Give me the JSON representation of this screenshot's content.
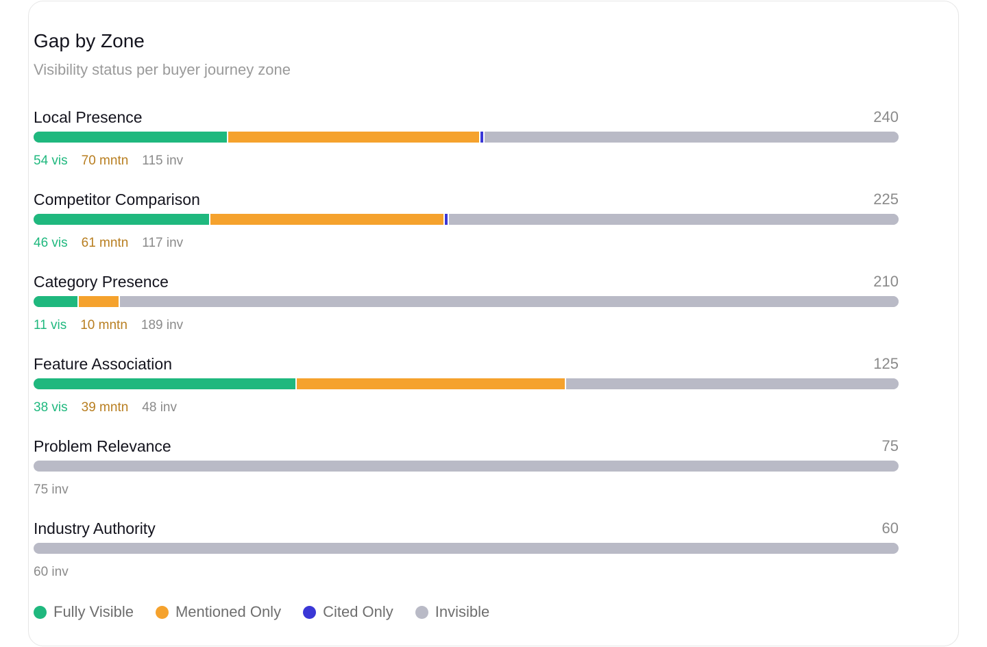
{
  "chart_data": {
    "type": "bar",
    "orientation": "horizontal-stacked",
    "title": "Gap by Zone",
    "subtitle": "Visibility status per buyer journey zone",
    "series_names": [
      "Fully Visible",
      "Mentioned Only",
      "Cited Only",
      "Invisible"
    ],
    "colors": [
      "#1fb87e",
      "#f5a22d",
      "#3a37d6",
      "#b9bac6"
    ],
    "zones": [
      {
        "name": "Local Presence",
        "total": 240,
        "visible": 54,
        "mentioned": 70,
        "cited": 1,
        "invisible": 115
      },
      {
        "name": "Competitor Comparison",
        "total": 225,
        "visible": 46,
        "mentioned": 61,
        "cited": 1,
        "invisible": 117
      },
      {
        "name": "Category Presence",
        "total": 210,
        "visible": 11,
        "mentioned": 10,
        "cited": 0,
        "invisible": 189
      },
      {
        "name": "Feature Association",
        "total": 125,
        "visible": 38,
        "mentioned": 39,
        "cited": 0,
        "invisible": 48
      },
      {
        "name": "Problem Relevance",
        "total": 75,
        "visible": 0,
        "mentioned": 0,
        "cited": 0,
        "invisible": 75
      },
      {
        "name": "Industry Authority",
        "total": 60,
        "visible": 0,
        "mentioned": 0,
        "cited": 0,
        "invisible": 60
      }
    ],
    "suffixes": {
      "visible": "vis",
      "mentioned": "mntn",
      "invisible": "inv"
    }
  }
}
